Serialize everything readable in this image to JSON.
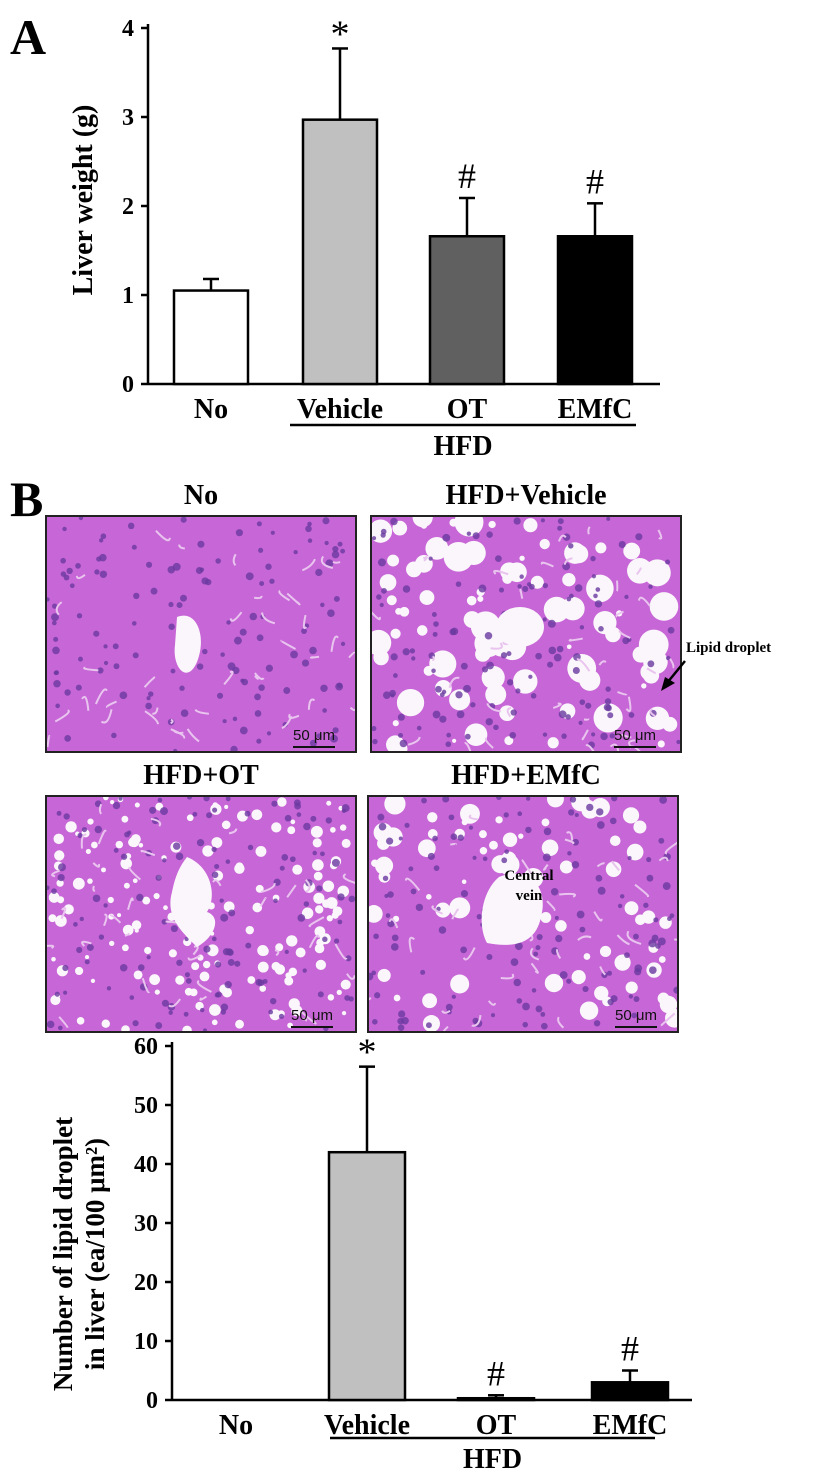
{
  "panel_labels": {
    "a": "A",
    "b": "B"
  },
  "micrographs": {
    "titles": [
      "No",
      "HFD+Vehicle",
      "HFD+OT",
      "HFD+EMfC"
    ],
    "scale_label": "50 μm",
    "lipid_label": "Lipid droplet",
    "central_vein_label": "Central vein",
    "colors": {
      "tissue": "#c766d6",
      "nuclei": "#6a3aa0",
      "lumen": "#fbf6fb"
    }
  },
  "chart_data": [
    {
      "type": "bar",
      "categories": [
        "No",
        "Vehicle",
        "OT",
        "EMfC"
      ],
      "values": [
        1.05,
        2.97,
        1.66,
        1.66
      ],
      "errors": [
        0.13,
        0.8,
        0.43,
        0.37
      ],
      "significance": [
        "",
        "*",
        "#",
        "#"
      ],
      "group_label": "HFD",
      "ylabel": "Liver weight (g)",
      "ylim": [
        0,
        4
      ],
      "yticks": [
        0,
        1,
        2,
        3,
        4
      ],
      "bar_colors": [
        "#ffffff",
        "#c0c0c0",
        "#606060",
        "#000000"
      ]
    },
    {
      "type": "bar",
      "categories": [
        "No",
        "Vehicle",
        "OT",
        "EMfC"
      ],
      "values": [
        0,
        42,
        0.3,
        3
      ],
      "errors": [
        0,
        14.5,
        0.5,
        2
      ],
      "significance": [
        "",
        "*",
        "#",
        "#"
      ],
      "group_label": "HFD",
      "ylabel_line1": "Number of lipid droplet",
      "ylabel_line2": "in liver (ea/100 μm²)",
      "ylim": [
        0,
        60
      ],
      "yticks": [
        0,
        10,
        20,
        30,
        40,
        50,
        60
      ],
      "bar_colors": [
        "#ffffff",
        "#c0c0c0",
        "#606060",
        "#000000"
      ]
    }
  ]
}
